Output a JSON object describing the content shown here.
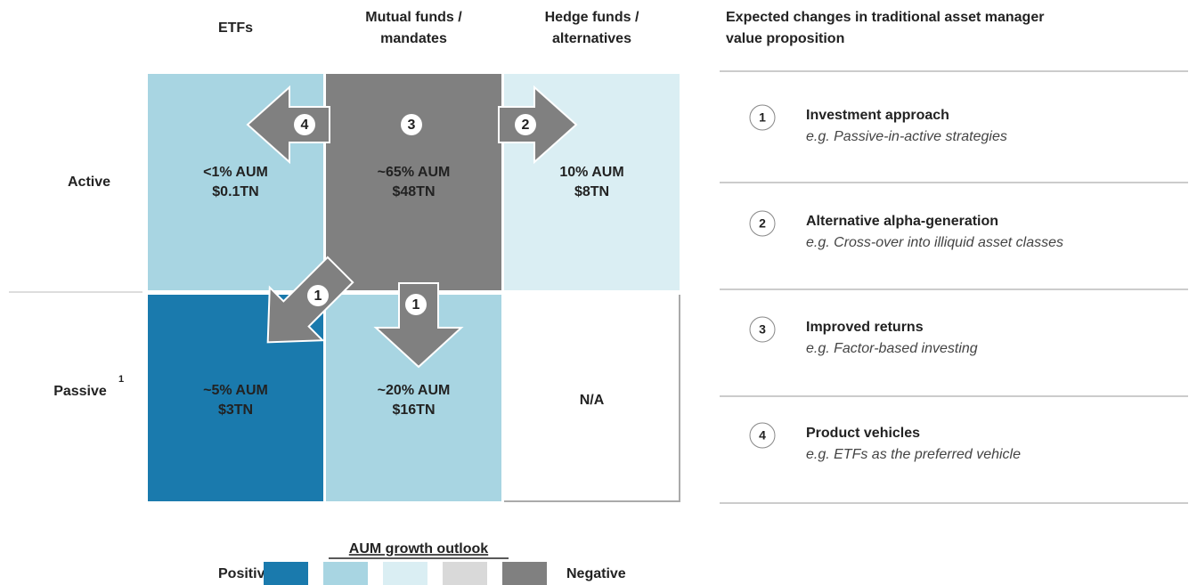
{
  "columns": [
    "ETFs",
    "Mutual funds / mandates",
    "Hedge funds / alternatives"
  ],
  "rows": [
    {
      "label": "Active"
    },
    {
      "label": "Passive",
      "note": "1"
    }
  ],
  "cells": [
    [
      [
        "<1% AUM",
        "$0.1TN"
      ],
      [
        "~65% AUM",
        "$48TN"
      ],
      [
        "10% AUM",
        "$8TN"
      ]
    ],
    [
      [
        "~5% AUM",
        "$3TN"
      ],
      [
        "~20% AUM",
        "$16TN"
      ],
      [
        "N/A"
      ]
    ]
  ],
  "badges": [
    "4",
    "3",
    "2",
    "1",
    "1"
  ],
  "panel": {
    "title": "Expected changes in traditional asset manager value proposition",
    "items": [
      {
        "number": "1",
        "title": "Investment approach",
        "example": "e.g. Passive-in-active strategies"
      },
      {
        "number": "2",
        "title": "Alternative alpha-generation",
        "example": "e.g. Cross-over into illiquid asset classes"
      },
      {
        "number": "3",
        "title": "Improved returns",
        "example": "e.g. Factor-based investing"
      },
      {
        "number": "4",
        "title": "Product vehicles",
        "example": "e.g. ETFs as the preferred vehicle"
      }
    ]
  },
  "legend": {
    "title": "AUM growth outlook",
    "low": "Positive",
    "high": "Negative",
    "colors": [
      "#1a7aad",
      "#a8d5e2",
      "#daeef3",
      "#d9d9d9",
      "#808080"
    ]
  }
}
